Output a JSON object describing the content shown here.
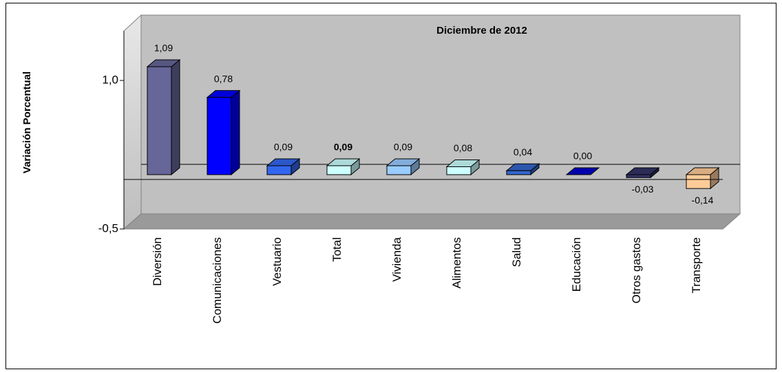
{
  "chart_data": {
    "type": "bar3d",
    "title": "Diciembre de 2012",
    "y_label": "Variación Porcentual",
    "categories": [
      "Diversión",
      "Comunicaciones",
      "Vestuario",
      "Total",
      "Vivienda",
      "Alimentos",
      "Salud",
      "Educación",
      "Otros gastos",
      "Transporte"
    ],
    "values": [
      1.09,
      0.78,
      0.09,
      0.09,
      0.09,
      0.08,
      0.04,
      0.0,
      -0.03,
      -0.14
    ],
    "value_labels": [
      "1,09",
      "0,78",
      "0,09",
      "0,09",
      "0,09",
      "0,08",
      "0,04",
      "0,00",
      "-0,03",
      "-0,14"
    ],
    "colors": [
      "#666699",
      "#0000ff",
      "#3366ee",
      "#ccffff",
      "#99ccff",
      "#ccffff",
      "#3366cc",
      "#0000cc",
      "#333366",
      "#ffcc99"
    ],
    "highlight_category": "Total",
    "ylim": [
      -0.5,
      1.5
    ],
    "yticks": [
      {
        "value": 1.0,
        "label": "1,0"
      },
      {
        "value": -0.5,
        "label": "-0,5"
      }
    ]
  }
}
